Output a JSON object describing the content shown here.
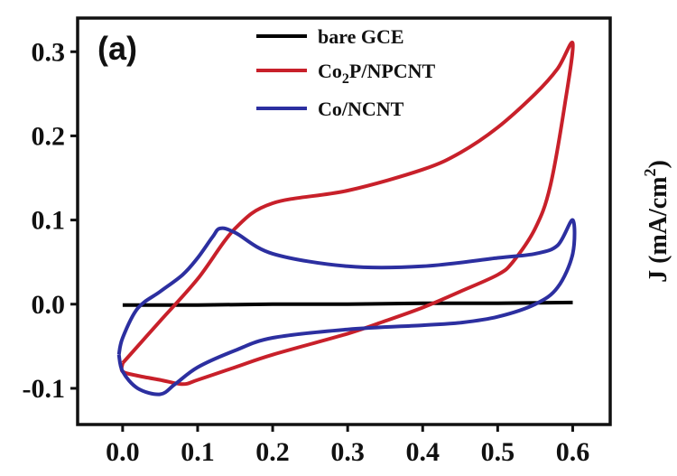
{
  "chart_data": {
    "type": "line",
    "panel_label": "(a)",
    "xlabel": "",
    "ylabel": "J (mA/cm²)",
    "ylabel_parts": {
      "main": "J (mA/cm",
      "sup": "2",
      "close": ")"
    },
    "xlim": [
      -0.06,
      0.65
    ],
    "ylim": [
      -0.143,
      0.34
    ],
    "x_ticks": [
      0.0,
      0.1,
      0.2,
      0.3,
      0.4,
      0.5,
      0.6
    ],
    "x_tick_labels": [
      "0.0",
      "0.1",
      "0.2",
      "0.3",
      "0.4",
      "0.5",
      "0.6"
    ],
    "y_ticks": [
      -0.1,
      0.0,
      0.1,
      0.2,
      0.3
    ],
    "y_tick_labels": [
      "-0.1",
      "0.0",
      "0.1",
      "0.2",
      "0.3"
    ],
    "legend_position": "top",
    "series": [
      {
        "name": "bare GCE",
        "legend_parts": {
          "main": "bare GCE"
        },
        "color": "#000000",
        "x": [
          0.0,
          0.1,
          0.2,
          0.3,
          0.4,
          0.5,
          0.6
        ],
        "y": [
          -0.001,
          -0.001,
          0.0,
          0.0,
          0.001,
          0.001,
          0.002
        ]
      },
      {
        "name": "Co2P/NPCNT",
        "legend_parts": {
          "pre": "Co",
          "sub": "2",
          "post": "P/NPCNT"
        },
        "color": "#c8202a",
        "x": [
          0.0,
          0.05,
          0.1,
          0.15,
          0.2,
          0.3,
          0.4,
          0.45,
          0.5,
          0.55,
          0.58,
          0.6,
          0.59,
          0.57,
          0.55,
          0.52,
          0.5,
          0.45,
          0.4,
          0.35,
          0.3,
          0.2,
          0.15,
          0.1,
          0.08,
          0.05,
          0.02,
          0.0,
          0.0
        ],
        "y": [
          -0.07,
          -0.02,
          0.03,
          0.09,
          0.12,
          0.135,
          0.16,
          0.18,
          0.21,
          0.25,
          0.28,
          0.31,
          0.24,
          0.14,
          0.09,
          0.05,
          0.035,
          0.015,
          -0.004,
          -0.02,
          -0.035,
          -0.06,
          -0.075,
          -0.09,
          -0.095,
          -0.09,
          -0.085,
          -0.08,
          -0.07
        ]
      },
      {
        "name": "Co/NCNT",
        "legend_parts": {
          "main": "Co/NCNT"
        },
        "color": "#2c2fa0",
        "x": [
          -0.005,
          0.0,
          0.02,
          0.05,
          0.08,
          0.1,
          0.12,
          0.13,
          0.15,
          0.2,
          0.3,
          0.4,
          0.5,
          0.55,
          0.58,
          0.6,
          0.6,
          0.58,
          0.55,
          0.5,
          0.45,
          0.4,
          0.3,
          0.2,
          0.15,
          0.1,
          0.07,
          0.05,
          0.02,
          0.0,
          -0.005
        ],
        "y": [
          -0.06,
          -0.04,
          -0.005,
          0.015,
          0.035,
          0.055,
          0.08,
          0.09,
          0.085,
          0.06,
          0.045,
          0.045,
          0.055,
          0.06,
          0.07,
          0.1,
          0.06,
          0.02,
          0.0,
          -0.015,
          -0.022,
          -0.025,
          -0.03,
          -0.04,
          -0.055,
          -0.075,
          -0.095,
          -0.107,
          -0.1,
          -0.08,
          -0.06
        ]
      }
    ]
  }
}
